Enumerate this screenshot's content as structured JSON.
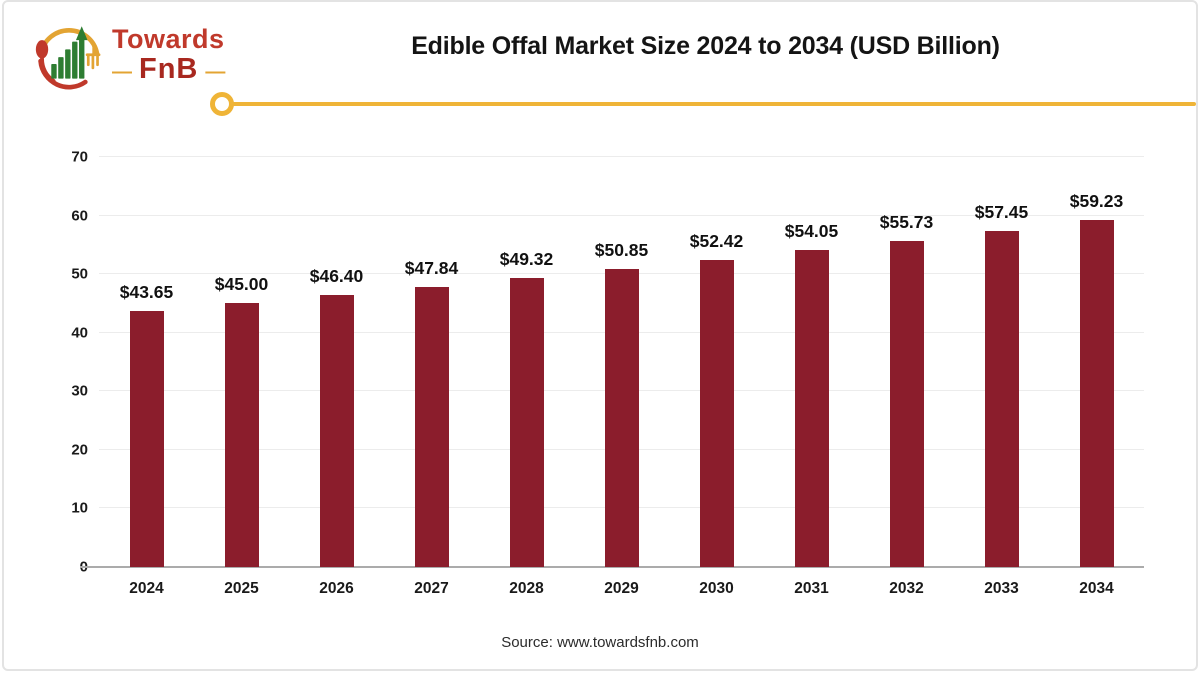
{
  "logo": {
    "brand_top": "Towards",
    "brand_bottom": "FnB",
    "dash_left": "—",
    "dash_right": "—"
  },
  "header": {
    "title": "Edible Offal Market Size 2024 to 2034 (USD Billion)"
  },
  "footer": {
    "source": "Source: www.towardsfnb.com"
  },
  "colors": {
    "bar": "#8b1d2c",
    "accent_yellow": "#efb437",
    "logo_red": "#c0392b",
    "logo_dark_red": "#a8281f",
    "logo_green": "#2e7d32",
    "grid": "#ececec",
    "axis": "#ababab",
    "text": "#111111"
  },
  "chart_data": {
    "type": "bar",
    "title": "Edible Offal Market Size 2024 to 2034 (USD Billion)",
    "categories": [
      "2024",
      "2025",
      "2026",
      "2027",
      "2028",
      "2029",
      "2030",
      "2031",
      "2032",
      "2033",
      "2034"
    ],
    "values": [
      43.65,
      45.0,
      46.4,
      47.84,
      49.32,
      50.85,
      52.42,
      54.05,
      55.73,
      57.45,
      59.23
    ],
    "value_labels": [
      "$43.65",
      "$45.00",
      "$46.40",
      "$47.84",
      "$49.32",
      "$50.85",
      "$52.42",
      "$54.05",
      "$55.73",
      "$57.45",
      "$59.23"
    ],
    "xlabel": "",
    "ylabel": "",
    "ylim": [
      0,
      70
    ],
    "yticks": [
      0,
      10,
      20,
      30,
      40,
      50,
      60,
      70
    ],
    "grid": true,
    "legend": false,
    "bar_color": "#8b1d2c",
    "units": "USD Billion"
  }
}
